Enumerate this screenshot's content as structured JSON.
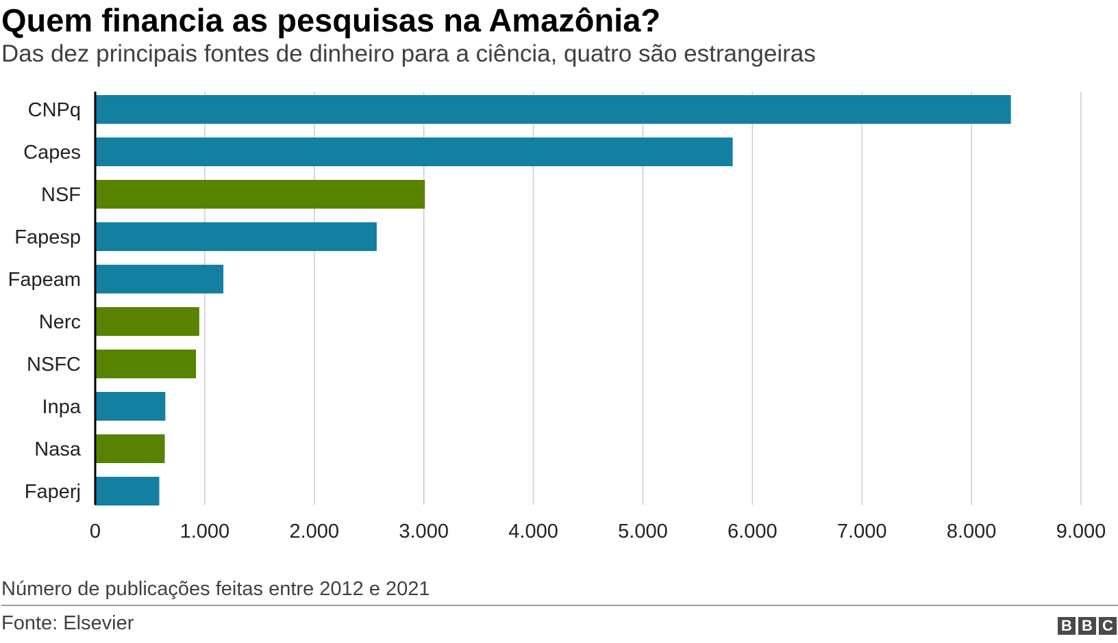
{
  "header": {
    "title": "Quem financia as pesquisas na Amazônia?",
    "subtitle": "Das dez principais fontes de dinheiro para a ciência, quatro são estrangeiras"
  },
  "footer": {
    "note": "Número de publicações feitas entre 2012 e 2021",
    "source": "Fonte: Elsevier",
    "logo_letters": [
      "B",
      "B",
      "C"
    ]
  },
  "colors": {
    "brazilian": "#1380A1",
    "foreign": "#588300",
    "grid": "#cbcbcb",
    "axis": "#000000"
  },
  "chart_data": {
    "type": "bar",
    "orientation": "horizontal",
    "categories": [
      "CNPq",
      "Capes",
      "NSF",
      "Fapesp",
      "Fapeam",
      "Nerc",
      "NSFC",
      "Inpa",
      "Nasa",
      "Faperj"
    ],
    "values": [
      8360,
      5820,
      3010,
      2570,
      1170,
      950,
      920,
      640,
      635,
      585
    ],
    "bar_group": [
      "brazilian",
      "brazilian",
      "foreign",
      "brazilian",
      "brazilian",
      "foreign",
      "foreign",
      "brazilian",
      "foreign",
      "brazilian"
    ],
    "xlim": [
      0,
      9000
    ],
    "xticks": [
      0,
      1000,
      2000,
      3000,
      4000,
      5000,
      6000,
      7000,
      8000,
      9000
    ],
    "xtick_labels": [
      "0",
      "1.000",
      "2.000",
      "3.000",
      "4.000",
      "5.000",
      "6.000",
      "7.000",
      "8.000",
      "9.000"
    ],
    "grid": true,
    "title": "Quem financia as pesquisas na Amazônia?",
    "xlabel": "",
    "ylabel": ""
  }
}
